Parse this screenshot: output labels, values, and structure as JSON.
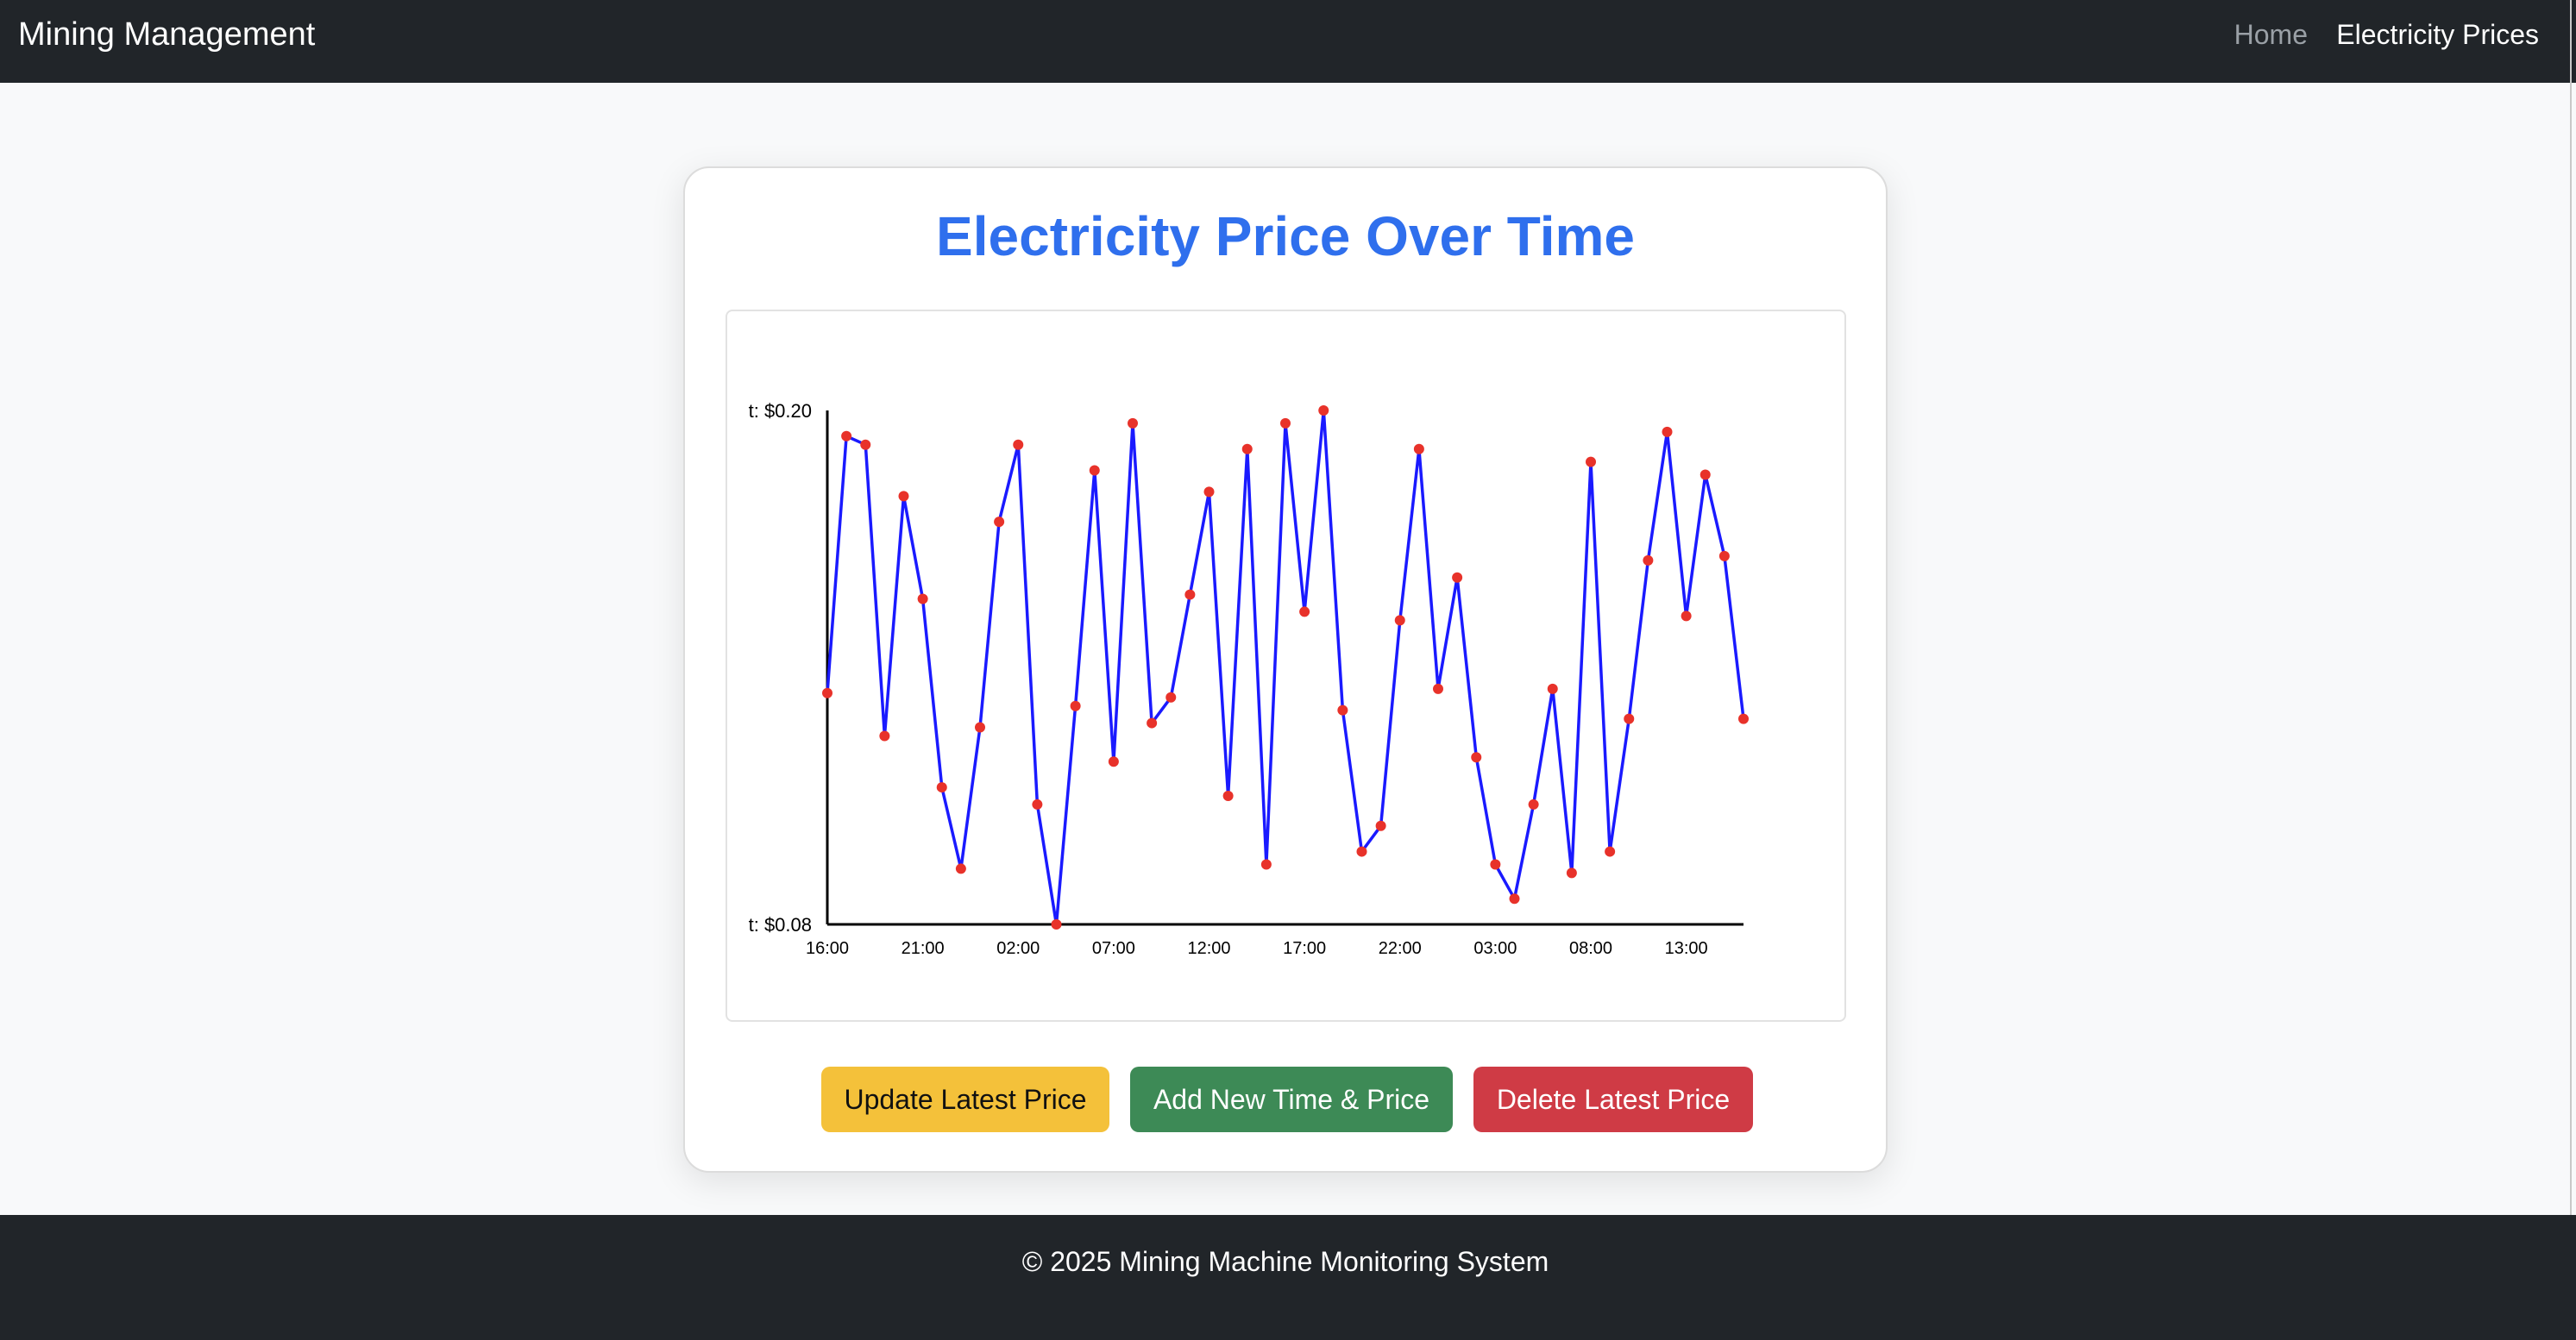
{
  "navbar": {
    "brand": "Mining Management",
    "links": [
      {
        "label": "Home"
      },
      {
        "label": "Electricity Prices"
      }
    ]
  },
  "card": {
    "title": "Electricity Price Over Time"
  },
  "chart_data": {
    "type": "line",
    "title": "",
    "xlabel": "",
    "ylabel": "",
    "ylim": [
      0.08,
      0.2
    ],
    "y_tick_labels": [
      "t: $0.20",
      "t: $0.08"
    ],
    "x_tick_labels": [
      "16:00",
      "21:00",
      "02:00",
      "07:00",
      "12:00",
      "17:00",
      "22:00",
      "03:00",
      "08:00",
      "13:00"
    ],
    "grid": false,
    "legend": "none",
    "line_color": "#1a1aff",
    "point_color": "#e8322a",
    "series": [
      {
        "values": [
          0.134,
          0.194,
          0.192,
          0.124,
          0.18,
          0.156,
          0.112,
          0.093,
          0.126,
          0.174,
          0.192,
          0.108,
          0.08,
          0.131,
          0.186,
          0.118,
          0.197,
          0.127,
          0.133,
          0.157,
          0.181,
          0.11,
          0.191,
          0.094,
          0.197,
          0.153,
          0.2,
          0.13,
          0.097,
          0.103,
          0.151,
          0.191,
          0.135,
          0.161,
          0.119,
          0.094,
          0.086,
          0.108,
          0.135,
          0.092,
          0.188,
          0.097,
          0.128,
          0.165,
          0.195,
          0.152,
          0.185,
          0.166,
          0.128
        ]
      }
    ]
  },
  "buttons": {
    "update": "Update Latest Price",
    "add": "Add New Time & Price",
    "delete": "Delete Latest Price"
  },
  "footer": {
    "text": "© 2025 Mining Machine Monitoring System"
  }
}
